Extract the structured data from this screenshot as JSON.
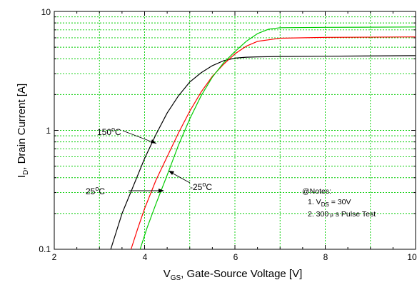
{
  "chart_data": {
    "type": "line",
    "xlabel": {
      "main": "V",
      "sub": "GS",
      "rest": ", Gate-Source Voltage [V]"
    },
    "ylabel": {
      "main": "I",
      "sub": "D",
      "rest": ", Drain Current [A]"
    },
    "xlim": [
      2,
      10
    ],
    "ylim": [
      0.1,
      10
    ],
    "yscale": "log",
    "xticks": [
      2,
      4,
      6,
      8,
      10
    ],
    "yticks": [
      0.1,
      1,
      10
    ],
    "xtick_labels": [
      "2",
      "4",
      "6",
      "8",
      "10"
    ],
    "ytick_labels": [
      "0.1",
      "1",
      "10"
    ],
    "grid": true,
    "series": [
      {
        "name": "150°C",
        "color": "#000000",
        "x": [
          3.25,
          3.5,
          3.75,
          4.0,
          4.25,
          4.5,
          4.75,
          5.0,
          5.25,
          5.5,
          5.75,
          6.0,
          6.25,
          6.5,
          7.0,
          8.0,
          10.0
        ],
        "y": [
          0.1,
          0.2,
          0.34,
          0.58,
          0.92,
          1.4,
          1.95,
          2.55,
          3.05,
          3.5,
          3.85,
          4.05,
          4.12,
          4.15,
          4.18,
          4.2,
          4.25
        ]
      },
      {
        "name": "25°C",
        "color": "#ff0000",
        "x": [
          3.7,
          3.85,
          4.0,
          4.25,
          4.5,
          4.75,
          5.0,
          5.25,
          5.5,
          5.75,
          6.0,
          6.25,
          6.5,
          7.0,
          8.0,
          10.0
        ],
        "y": [
          0.1,
          0.15,
          0.22,
          0.38,
          0.6,
          0.95,
          1.45,
          2.1,
          2.85,
          3.6,
          4.4,
          5.1,
          5.6,
          5.95,
          6.05,
          6.1
        ]
      },
      {
        "name": "-25°C",
        "color": "#00cc00",
        "x": [
          3.9,
          4.05,
          4.25,
          4.5,
          4.75,
          5.0,
          5.25,
          5.5,
          5.75,
          6.0,
          6.25,
          6.5,
          6.75,
          7.0,
          8.0,
          10.0
        ],
        "y": [
          0.1,
          0.15,
          0.24,
          0.42,
          0.75,
          1.25,
          1.95,
          2.8,
          3.7,
          4.6,
          5.6,
          6.5,
          7.1,
          7.3,
          7.35,
          7.4
        ]
      }
    ],
    "annotations": [
      {
        "series": "150°C",
        "label_main": "150",
        "label_sup": "o",
        "label_rest": "C"
      },
      {
        "series": "25°C",
        "label_main": "25",
        "label_sup": "o",
        "label_rest": "C"
      },
      {
        "series": "-25°C",
        "label_main": "-25",
        "label_sup": "o",
        "label_rest": "C"
      }
    ],
    "notes": {
      "heading": "@Notes:",
      "line1_prefix": "1. V",
      "line1_sub": "DS",
      "line1_rest": " = 30V",
      "line2_prefix": "2. 300",
      "line2_mu": "μ",
      "line2_rest": " s Pulse Test"
    }
  }
}
